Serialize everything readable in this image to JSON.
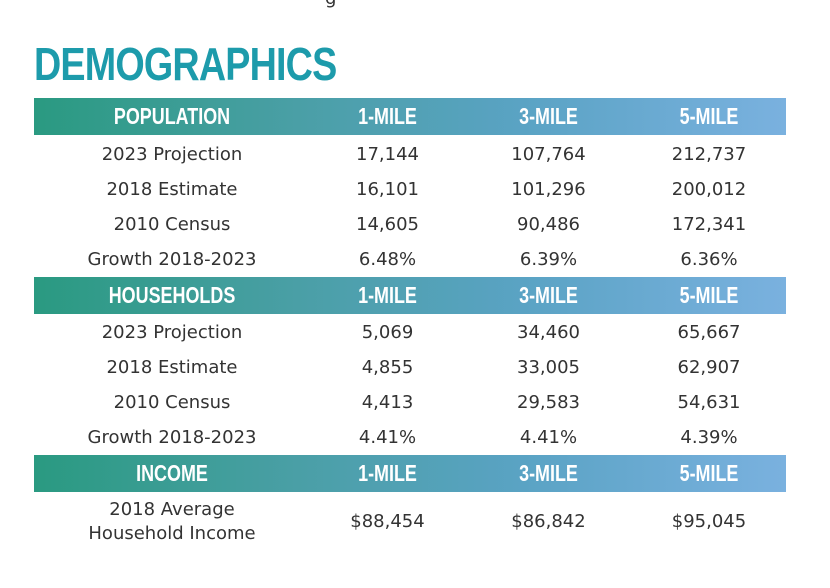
{
  "top_fragment": "g",
  "title": "DEMOGRAPHICS",
  "sections": [
    {
      "header": [
        "POPULATION",
        "1-MILE",
        "3-MILE",
        "5-MILE"
      ],
      "rows": [
        [
          "2023 Projection",
          "17,144",
          "107,764",
          "212,737"
        ],
        [
          "2018 Estimate",
          "16,101",
          "101,296",
          "200,012"
        ],
        [
          "2010 Census",
          "14,605",
          "90,486",
          "172,341"
        ],
        [
          "Growth 2018-2023",
          "6.48%",
          "6.39%",
          "6.36%"
        ]
      ]
    },
    {
      "header": [
        "HOUSEHOLDS",
        "1-MILE",
        "3-MILE",
        "5-MILE"
      ],
      "rows": [
        [
          "2023 Projection",
          "5,069",
          "34,460",
          "65,667"
        ],
        [
          "2018 Estimate",
          "4,855",
          "33,005",
          "62,907"
        ],
        [
          "2010 Census",
          "4,413",
          "29,583",
          "54,631"
        ],
        [
          "Growth 2018-2023",
          "4.41%",
          "4.41%",
          "4.39%"
        ]
      ]
    },
    {
      "header": [
        "INCOME",
        "1-MILE",
        "3-MILE",
        "5-MILE"
      ],
      "rows": [
        [
          "2018 Average",
          "Household Income",
          "$88,454",
          "$86,842",
          "$95,045"
        ]
      ]
    }
  ]
}
